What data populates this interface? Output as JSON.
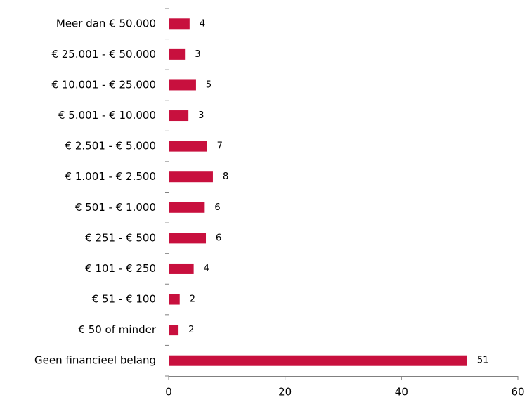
{
  "chart_data": {
    "type": "barh",
    "categories": [
      "Meer dan € 50.000",
      "€ 25.001 - € 50.000",
      "€ 10.001 - € 25.000",
      "€ 5.001 - € 10.000",
      "€ 2.501 - € 5.000",
      "€ 1.001 - € 2.500",
      "€ 501 - € 1.000",
      "€ 251 - € 500",
      "€ 101 - € 250",
      "€ 51 - € 100",
      "€ 50 of minder",
      "Geen financieel belang"
    ],
    "values": [
      3.6,
      2.8,
      4.7,
      3.4,
      6.6,
      7.6,
      6.2,
      6.4,
      4.3,
      1.9,
      1.7,
      51.3
    ],
    "value_labels": [
      "4",
      "3",
      "5",
      "3",
      "7",
      "8",
      "6",
      "6",
      "4",
      "2",
      "2",
      "51"
    ],
    "color": "#c8103e",
    "xlim": [
      0,
      60
    ],
    "xticks": [
      0,
      20,
      40,
      60
    ]
  }
}
